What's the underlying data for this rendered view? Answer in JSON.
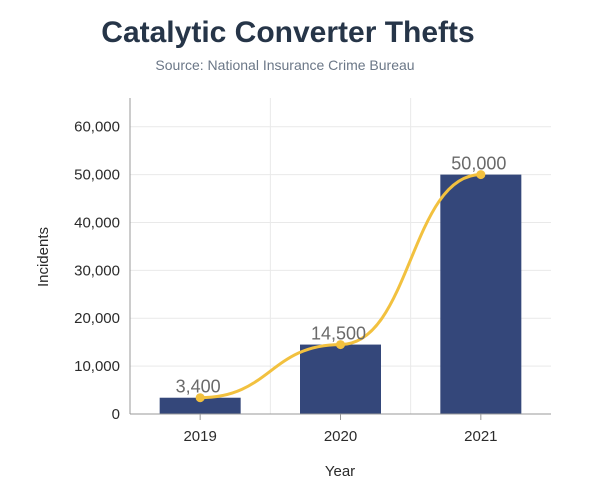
{
  "chart_data": {
    "type": "bar",
    "title": "Catalytic Converter Thefts",
    "subtitle": "Source: National Insurance Crime Bureau",
    "xlabel": "Year",
    "ylabel": "Incidents",
    "categories": [
      "2019",
      "2020",
      "2021"
    ],
    "values": [
      3400,
      14500,
      50000
    ],
    "data_labels": [
      "3,400",
      "14,500",
      "50,000"
    ],
    "overlay_line": {
      "type": "line",
      "smooth": true,
      "values": [
        3400,
        14500,
        50000
      ]
    },
    "ylim": [
      0,
      66000
    ],
    "yticks": [
      0,
      10000,
      20000,
      30000,
      40000,
      50000,
      60000
    ],
    "ytick_labels": [
      "0",
      "10,000",
      "20,000",
      "30,000",
      "40,000",
      "50,000",
      "60,000"
    ],
    "grid": true,
    "legend": "none",
    "colors": {
      "bar": "#34477a",
      "line": "#f2c13f",
      "title": "#263548",
      "subtitle": "#6b7787",
      "grid": "#e9e9e9",
      "axis": "#999999"
    }
  }
}
